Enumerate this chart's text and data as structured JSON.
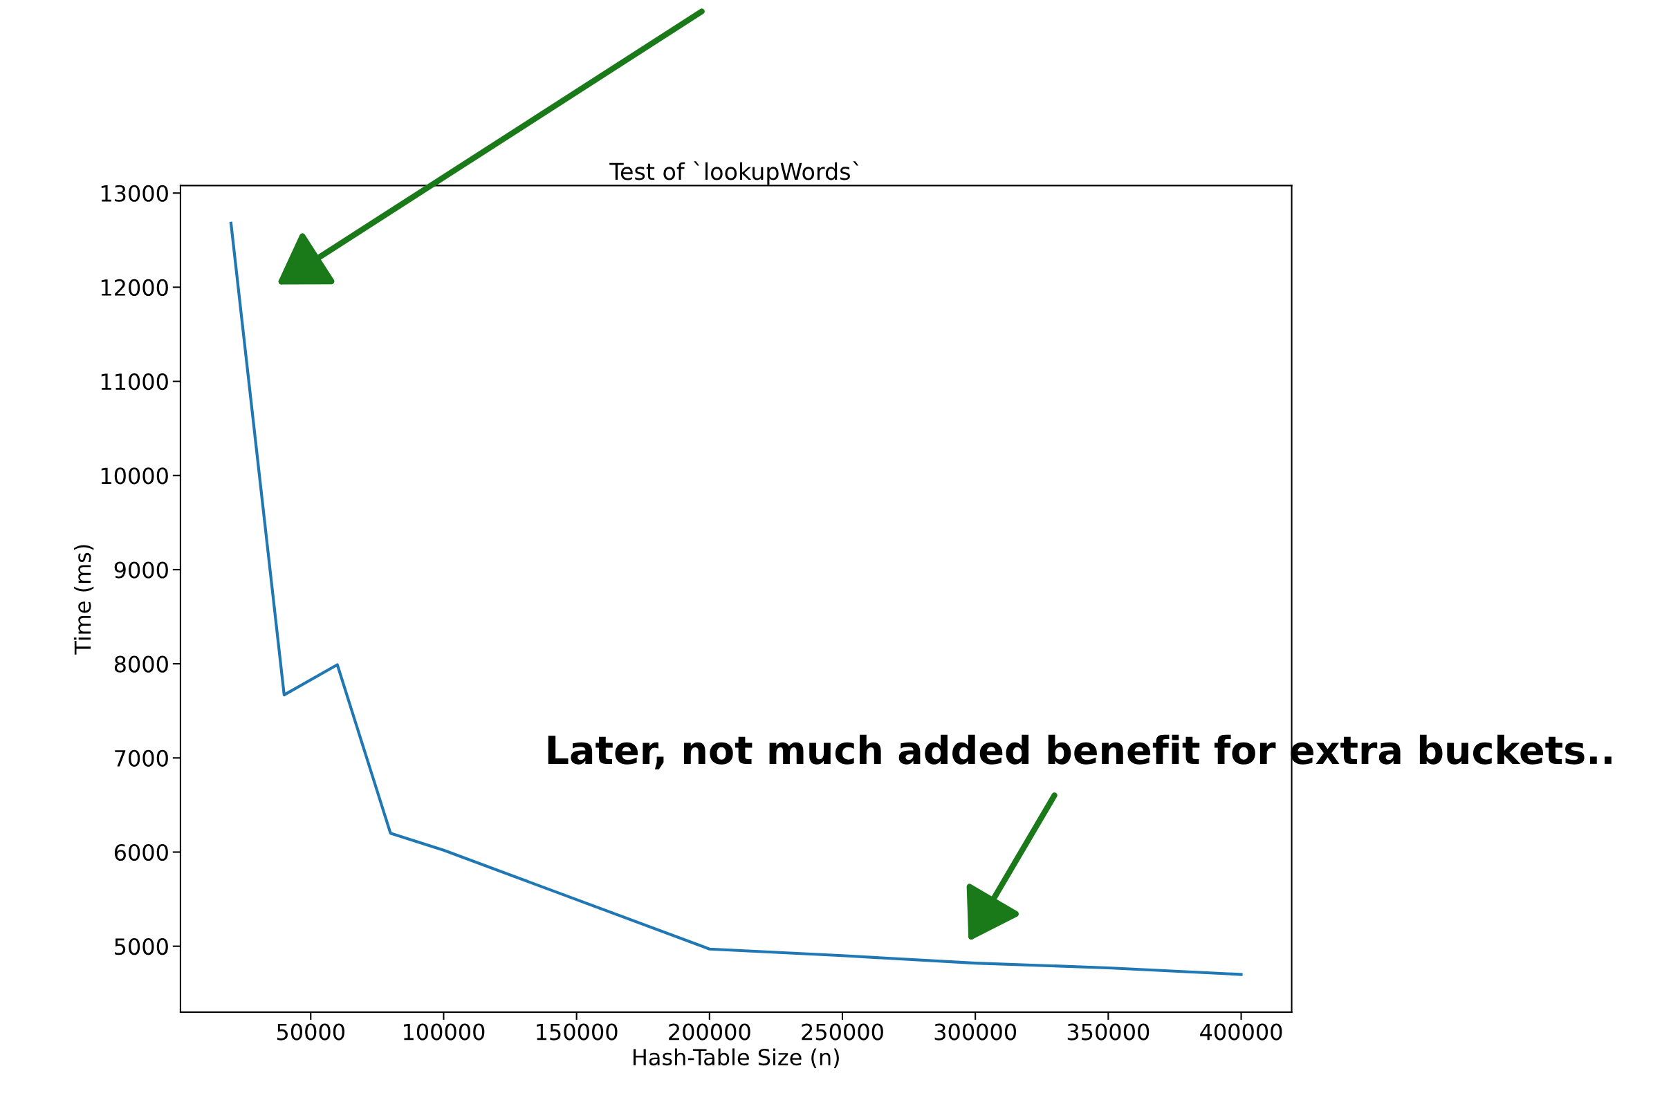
{
  "chart_data": {
    "type": "line",
    "title": "Test of `lookupWords`",
    "xlabel": "Hash-Table Size (n)",
    "ylabel": "Time (ms)",
    "x": [
      20000,
      40000,
      60000,
      80000,
      100000,
      200000,
      250000,
      300000,
      350000,
      400000
    ],
    "series": [
      {
        "color": "#1f77b4",
        "values": [
          12680,
          7670,
          7990,
          6200,
          6020,
          4970,
          4900,
          4820,
          4770,
          4700
        ]
      }
    ],
    "xlim": [
      1000,
      419000
    ],
    "xticks": [
      50000,
      100000,
      150000,
      200000,
      250000,
      300000,
      350000,
      400000
    ],
    "ylim": [
      4300,
      13080
    ],
    "yticks": [
      5000,
      6000,
      7000,
      8000,
      9000,
      10000,
      11000,
      12000,
      13000
    ],
    "grid": false,
    "legend": false,
    "annotations": [
      "Later, not much added benefit for extra buckets.."
    ]
  }
}
